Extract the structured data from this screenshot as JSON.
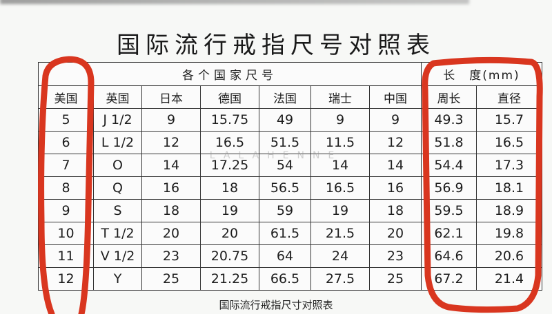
{
  "title": "国际流行戒指尺号对照表",
  "header": {
    "group_sizes": "各个国家尺号",
    "group_length": "长　度(mm)",
    "columns": [
      "美国",
      "英国",
      "日本",
      "德国",
      "法国",
      "瑞士",
      "中国",
      "周长",
      "直径"
    ]
  },
  "rows": [
    [
      "5",
      "J 1/2",
      "9",
      "15.75",
      "49",
      "9",
      "9",
      "49.3",
      "15.7"
    ],
    [
      "6",
      "L 1/2",
      "12",
      "16.5",
      "51.5",
      "11.5",
      "12",
      "51.8",
      "16.5"
    ],
    [
      "7",
      "O",
      "14",
      "17.25",
      "54",
      "14",
      "14",
      "54.4",
      "17.3"
    ],
    [
      "8",
      "Q",
      "16",
      "18",
      "56.5",
      "16.5",
      "16",
      "56.9",
      "18.1"
    ],
    [
      "9",
      "S",
      "18",
      "19",
      "59",
      "19",
      "18",
      "59.5",
      "18.9"
    ],
    [
      "10",
      "T 1/2",
      "20",
      "20",
      "61.5",
      "21.5",
      "20",
      "62.1",
      "19.8"
    ],
    [
      "11",
      "V 1/2",
      "23",
      "20.75",
      "64",
      "24",
      "23",
      "64.6",
      "20.6"
    ],
    [
      "12",
      "Y",
      "25",
      "21.25",
      "66.5",
      "27.5",
      "25",
      "67.2",
      "21.4"
    ]
  ],
  "caption": "国际流行戒指尺寸对照表",
  "watermark": "LALAHENNE",
  "highlight_color": "#d9361f"
}
